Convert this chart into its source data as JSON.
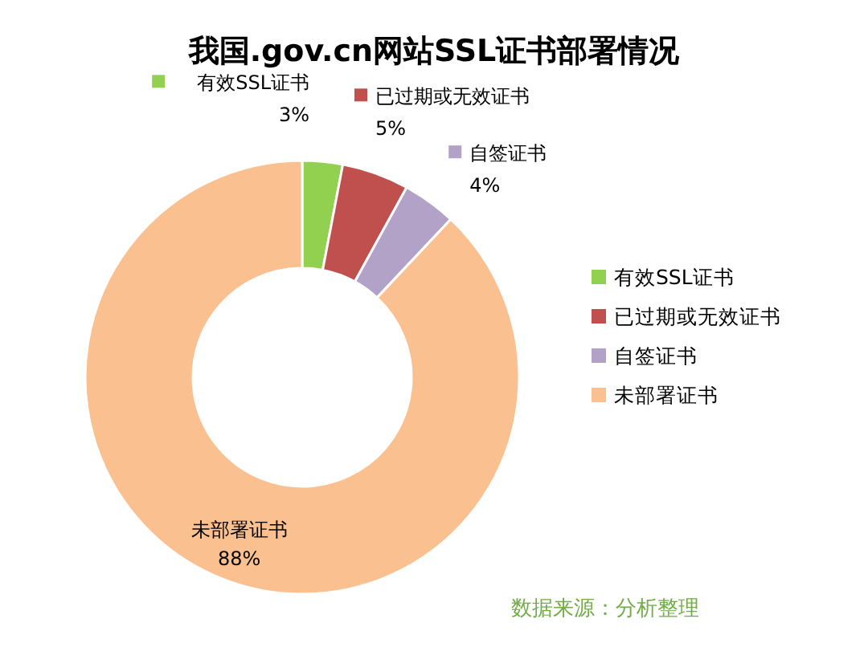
{
  "chart_data": {
    "type": "donut",
    "title": "我国.gov.cn网站SSL证书部署情况",
    "categories": [
      "有效SSL证书",
      "已过期或无效证书",
      "自签证书",
      "未部署证书"
    ],
    "values": [
      3,
      5,
      4,
      88
    ],
    "value_labels": [
      "3%",
      "5%",
      "4%",
      "88%"
    ],
    "colors": [
      "#92d050",
      "#c0504d",
      "#b3a2c7",
      "#fac090"
    ],
    "legend": "right",
    "annotations": [
      "数据来源：分析整理"
    ]
  }
}
